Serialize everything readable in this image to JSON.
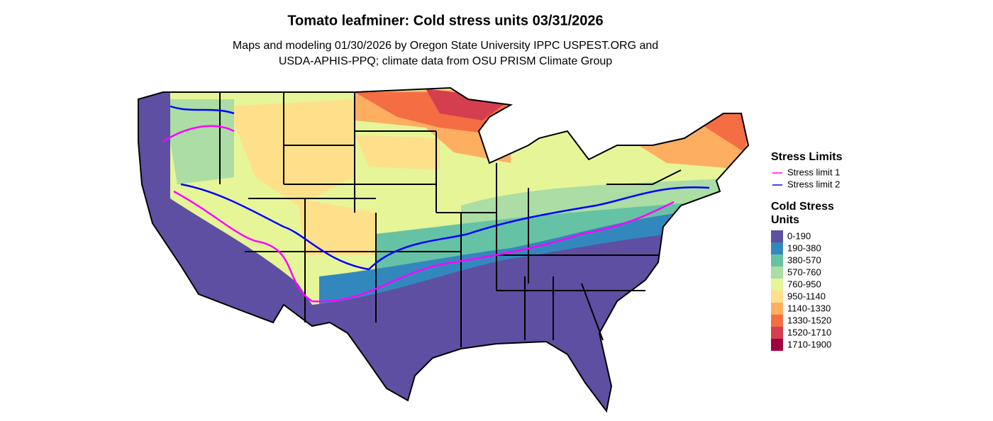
{
  "title": "Tomato leafminer: Cold stress units 03/31/2026",
  "subtitle": [
    "Maps and modeling 01/30/2026 by Oregon State University IPPC USPEST.ORG and",
    "USDA-APHIS-PPQ; climate data from OSU PRISM Climate Group"
  ],
  "legend_limits": {
    "title": "Stress Limits",
    "items": [
      {
        "label": "Stress limit 1",
        "color": "#ff00ff"
      },
      {
        "label": "Stress limit 2",
        "color": "#0000ff"
      }
    ]
  },
  "legend_units": {
    "title": [
      "Cold Stress",
      "Units"
    ],
    "items": [
      {
        "label": "0-190",
        "color": "#5e4fa2"
      },
      {
        "label": "190-380",
        "color": "#3288bd"
      },
      {
        "label": "380-570",
        "color": "#66c2a5"
      },
      {
        "label": "570-760",
        "color": "#abdda4"
      },
      {
        "label": "760-950",
        "color": "#e6f598"
      },
      {
        "label": "950-1140",
        "color": "#fee08b"
      },
      {
        "label": "1140-1330",
        "color": "#fdae61"
      },
      {
        "label": "1330-1520",
        "color": "#f46d43"
      },
      {
        "label": "1520-1710",
        "color": "#d53e4f"
      },
      {
        "label": "1710-1900",
        "color": "#9e0142"
      }
    ]
  }
}
